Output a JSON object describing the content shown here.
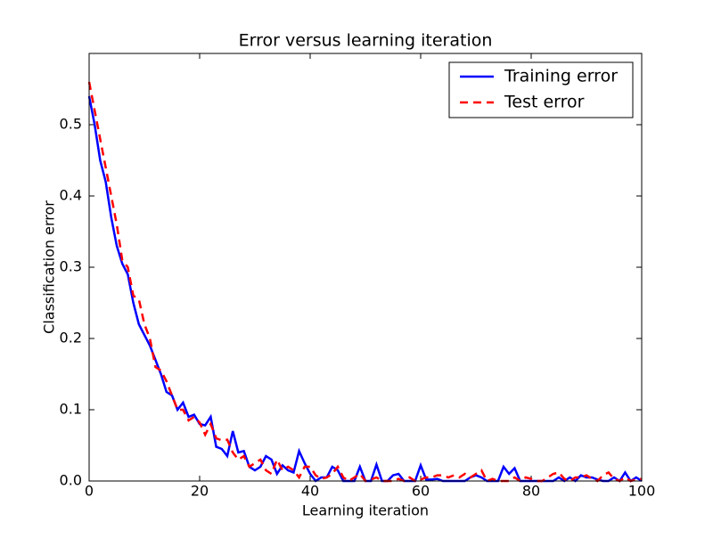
{
  "chart_data": {
    "type": "line",
    "title": "Error versus learning iteration",
    "xlabel": "Learning iteration",
    "ylabel": "Classification error",
    "x": [
      0,
      1,
      2,
      3,
      4,
      5,
      6,
      7,
      8,
      9,
      10,
      11,
      12,
      13,
      14,
      15,
      16,
      17,
      18,
      19,
      20,
      21,
      22,
      23,
      24,
      25,
      26,
      27,
      28,
      29,
      30,
      31,
      32,
      33,
      34,
      35,
      36,
      37,
      38,
      39,
      40,
      41,
      42,
      43,
      44,
      45,
      46,
      47,
      48,
      49,
      50,
      51,
      52,
      53,
      54,
      55,
      56,
      57,
      58,
      59,
      60,
      61,
      62,
      63,
      64,
      65,
      66,
      67,
      68,
      69,
      70,
      71,
      72,
      73,
      74,
      75,
      76,
      77,
      78,
      79,
      80,
      81,
      82,
      83,
      84,
      85,
      86,
      87,
      88,
      89,
      90,
      91,
      92,
      93,
      94,
      95,
      96,
      97,
      98,
      99,
      100
    ],
    "series": [
      {
        "name": "Training error",
        "color": "#0000ff",
        "dash": false,
        "values": [
          0.54,
          0.5,
          0.45,
          0.42,
          0.37,
          0.33,
          0.305,
          0.29,
          0.25,
          0.22,
          0.205,
          0.19,
          0.17,
          0.15,
          0.125,
          0.12,
          0.1,
          0.11,
          0.09,
          0.093,
          0.08,
          0.078,
          0.09,
          0.048,
          0.045,
          0.035,
          0.07,
          0.04,
          0.042,
          0.02,
          0.015,
          0.02,
          0.035,
          0.03,
          0.01,
          0.022,
          0.015,
          0.012,
          0.042,
          0.025,
          0.01,
          0,
          0.005,
          0.005,
          0.02,
          0.015,
          0,
          0,
          0,
          0.02,
          0,
          0,
          0.023,
          0,
          0,
          0.008,
          0.01,
          0,
          0,
          0,
          0.022,
          0.002,
          0.002,
          0.003,
          0,
          0,
          0,
          0,
          0,
          0.005,
          0.008,
          0.005,
          0,
          0,
          0,
          0.02,
          0.01,
          0.018,
          0,
          0,
          0,
          0,
          0,
          0,
          0,
          0.005,
          0,
          0.005,
          0,
          0.008,
          0.005,
          0.005,
          0.002,
          0,
          0,
          0.005,
          0,
          0.012,
          0,
          0.005,
          0
        ]
      },
      {
        "name": "Test error",
        "color": "#ff0000",
        "dash": true,
        "values": [
          0.56,
          0.52,
          0.48,
          0.44,
          0.4,
          0.36,
          0.31,
          0.3,
          0.26,
          0.255,
          0.22,
          0.2,
          0.16,
          0.155,
          0.14,
          0.12,
          0.1,
          0.1,
          0.085,
          0.09,
          0.082,
          0.065,
          0.08,
          0.06,
          0.057,
          0.058,
          0.04,
          0.03,
          0.035,
          0.02,
          0.025,
          0.03,
          0.015,
          0.01,
          0.03,
          0.015,
          0.02,
          0.015,
          0.005,
          0.02,
          0.02,
          0.008,
          0.003,
          0.005,
          0.01,
          0.02,
          0.005,
          0,
          0.005,
          0.01,
          0,
          0.002,
          0.005,
          0,
          0,
          0,
          0.003,
          0,
          0.005,
          0,
          0.002,
          0.005,
          0.005,
          0.008,
          0.008,
          0.005,
          0.008,
          0.005,
          0.01,
          0.005,
          0.01,
          0.015,
          0,
          0.003,
          0,
          0,
          0,
          0.005,
          0,
          0.005,
          0.003,
          0,
          0,
          0.005,
          0.01,
          0.012,
          0.003,
          0,
          0.005,
          0.005,
          0.008,
          0.003,
          0,
          0.008,
          0.012,
          0.003,
          0,
          0.005,
          0,
          0.002,
          0.003
        ]
      }
    ],
    "xlim": [
      0,
      100
    ],
    "xticks": [
      0,
      20,
      40,
      60,
      80,
      100
    ],
    "ylim": [
      0,
      0.6
    ],
    "yticks": [
      {
        "value": 0,
        "label": "0.0"
      },
      0.1,
      0.2,
      0.3,
      0.4,
      0.5
    ],
    "legend": "upper right"
  }
}
